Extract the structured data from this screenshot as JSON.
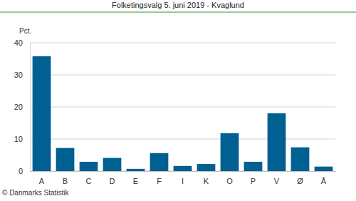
{
  "chart_data": {
    "type": "bar",
    "title": "Folketingsvalg 5. juni 2019 - Kvaglund",
    "y_label": "Pct.",
    "source": "© Danmarks Statistik",
    "categories": [
      "A",
      "B",
      "C",
      "D",
      "E",
      "F",
      "I",
      "K",
      "O",
      "P",
      "V",
      "Ø",
      "Å"
    ],
    "values": [
      35.8,
      7.2,
      2.9,
      4.1,
      0.7,
      5.6,
      1.6,
      2.2,
      11.8,
      2.9,
      18.0,
      7.4,
      1.4
    ],
    "color": "#006091",
    "ylim": [
      0,
      40
    ],
    "yticks": [
      0,
      10,
      20,
      30,
      40
    ],
    "grid": true
  }
}
